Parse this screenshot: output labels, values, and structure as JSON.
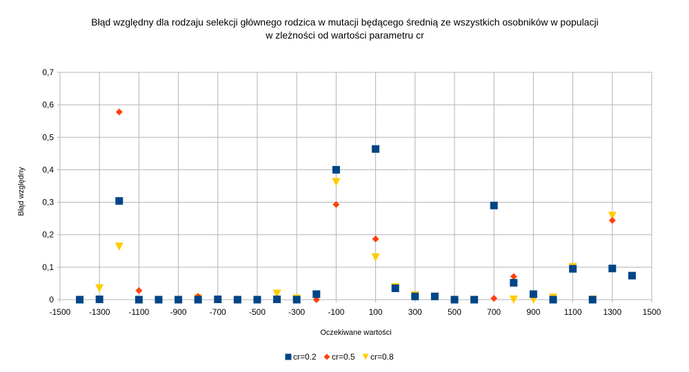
{
  "chart_data": {
    "type": "scatter",
    "title": [
      "Błąd względny dla  rodzaju selekcji głównego rodzica w mutacji będącego średnią ze wszystkich osobników w populacji",
      "w zleżności od wartości parametru cr"
    ],
    "xlabel": "Oczekiwane wartości",
    "ylabel": "Błąd względny",
    "xlim": [
      -1500,
      1500
    ],
    "ylim": [
      0,
      0.7
    ],
    "x_ticks": [
      -1500,
      -1300,
      -1100,
      -900,
      -700,
      -500,
      -300,
      -100,
      100,
      300,
      500,
      700,
      900,
      1100,
      1300,
      1500
    ],
    "y_ticks": [
      0,
      0.1,
      0.2,
      0.3,
      0.4,
      0.5,
      0.6,
      0.7
    ],
    "y_tick_labels": [
      "0",
      "0,1",
      "0,2",
      "0,3",
      "0,4",
      "0,5",
      "0,6",
      "0,7"
    ],
    "grid": true,
    "legend_position": "bottom",
    "series": [
      {
        "name": "cr=0.8",
        "marker": "triangle-down",
        "color": "#ffcc00",
        "points": [
          [
            -1300,
            0.035
          ],
          [
            -1200,
            0.163
          ],
          [
            -800,
            0.004
          ],
          [
            -400,
            0.018
          ],
          [
            -300,
            0.003
          ],
          [
            -100,
            0.362
          ],
          [
            100,
            0.13
          ],
          [
            200,
            0.038
          ],
          [
            300,
            0.013
          ],
          [
            800,
            0.0
          ],
          [
            900,
            0.0
          ],
          [
            1000,
            0.006
          ],
          [
            1100,
            0.1
          ],
          [
            1200,
            0.0
          ],
          [
            1300,
            0.258
          ]
        ]
      },
      {
        "name": "cr=0.5",
        "marker": "diamond",
        "color": "#ff420e",
        "points": [
          [
            -1200,
            0.578
          ],
          [
            -1100,
            0.028
          ],
          [
            -800,
            0.01
          ],
          [
            -700,
            0.002
          ],
          [
            -300,
            0.002
          ],
          [
            -200,
            0.0
          ],
          [
            -100,
            0.293
          ],
          [
            100,
            0.187
          ],
          [
            700,
            0.004
          ],
          [
            800,
            0.071
          ],
          [
            1100,
            0.093
          ],
          [
            1300,
            0.244
          ]
        ]
      },
      {
        "name": "cr=0.2",
        "marker": "square",
        "color": "#004586",
        "points": [
          [
            -1400,
            0.0
          ],
          [
            -1300,
            0.001
          ],
          [
            -1200,
            0.304
          ],
          [
            -1100,
            0.0
          ],
          [
            -1000,
            0.0
          ],
          [
            -900,
            0.0
          ],
          [
            -800,
            0.0
          ],
          [
            -700,
            0.001
          ],
          [
            -600,
            0.0
          ],
          [
            -500,
            0.0
          ],
          [
            -400,
            0.001
          ],
          [
            -300,
            0.0
          ],
          [
            -200,
            0.017
          ],
          [
            -100,
            0.4
          ],
          [
            100,
            0.464
          ],
          [
            200,
            0.035
          ],
          [
            300,
            0.01
          ],
          [
            400,
            0.01
          ],
          [
            500,
            0.0
          ],
          [
            600,
            0.0
          ],
          [
            700,
            0.29
          ],
          [
            800,
            0.052
          ],
          [
            900,
            0.017
          ],
          [
            1000,
            0.0
          ],
          [
            1100,
            0.095
          ],
          [
            1200,
            0.0
          ],
          [
            1300,
            0.096
          ],
          [
            1400,
            0.074
          ]
        ]
      }
    ],
    "legend_order": [
      "cr=0.2",
      "cr=0.5",
      "cr=0.8"
    ]
  }
}
